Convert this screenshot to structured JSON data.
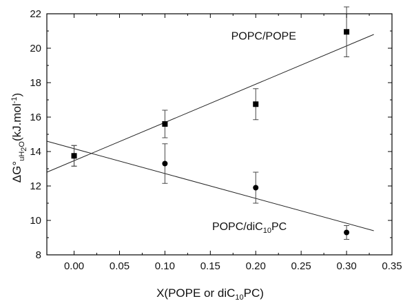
{
  "chart_data": {
    "type": "scatter",
    "title": "",
    "xlabel": {
      "main": "X(POPE or diC",
      "sub": "10",
      "tail": "PC)"
    },
    "ylabel": {
      "pre": "ΔG°",
      "sub": "uH",
      "sub2": "2",
      "subO": "O",
      "tail": "(kJ.mol",
      "sup": "-1",
      "end": ")"
    },
    "xlim": [
      -0.03,
      0.35
    ],
    "ylim": [
      8,
      22
    ],
    "xticks": [
      "0.00",
      "0.05",
      "0.10",
      "0.15",
      "0.20",
      "0.25",
      "0.30",
      "0.35"
    ],
    "xtick_values": [
      0.0,
      0.05,
      0.1,
      0.15,
      0.2,
      0.25,
      0.3,
      0.35
    ],
    "yticks": [
      "8",
      "10",
      "12",
      "14",
      "16",
      "18",
      "20",
      "22"
    ],
    "ytick_values": [
      8,
      10,
      12,
      14,
      16,
      18,
      20,
      22
    ],
    "grid": false,
    "series": [
      {
        "marker": "square",
        "points": [
          {
            "x": 0.0,
            "y": 13.75,
            "err": 0.6
          },
          {
            "x": 0.1,
            "y": 15.6,
            "err": 0.8
          },
          {
            "x": 0.2,
            "y": 16.75,
            "err": 0.9
          },
          {
            "x": 0.3,
            "y": 20.95,
            "err": 1.45
          }
        ],
        "fit": {
          "x": [
            -0.03,
            0.33
          ],
          "y": [
            12.8,
            20.8
          ]
        }
      },
      {
        "marker": "circle",
        "points": [
          {
            "x": 0.0,
            "y": 13.75,
            "err": 0.6
          },
          {
            "x": 0.1,
            "y": 13.3,
            "err": 1.15
          },
          {
            "x": 0.2,
            "y": 11.9,
            "err": 0.9
          },
          {
            "x": 0.3,
            "y": 9.3,
            "err": 0.4
          }
        ],
        "fit": {
          "x": [
            -0.03,
            0.33
          ],
          "y": [
            14.6,
            9.4
          ]
        }
      }
    ],
    "annotations": [
      {
        "text": "POPC/POPE",
        "x": 0.173,
        "y": 20.5
      },
      {
        "pre": "POPC/diC",
        "sub": "10",
        "tail": "PC",
        "x": 0.152,
        "y": 9.45
      }
    ]
  }
}
